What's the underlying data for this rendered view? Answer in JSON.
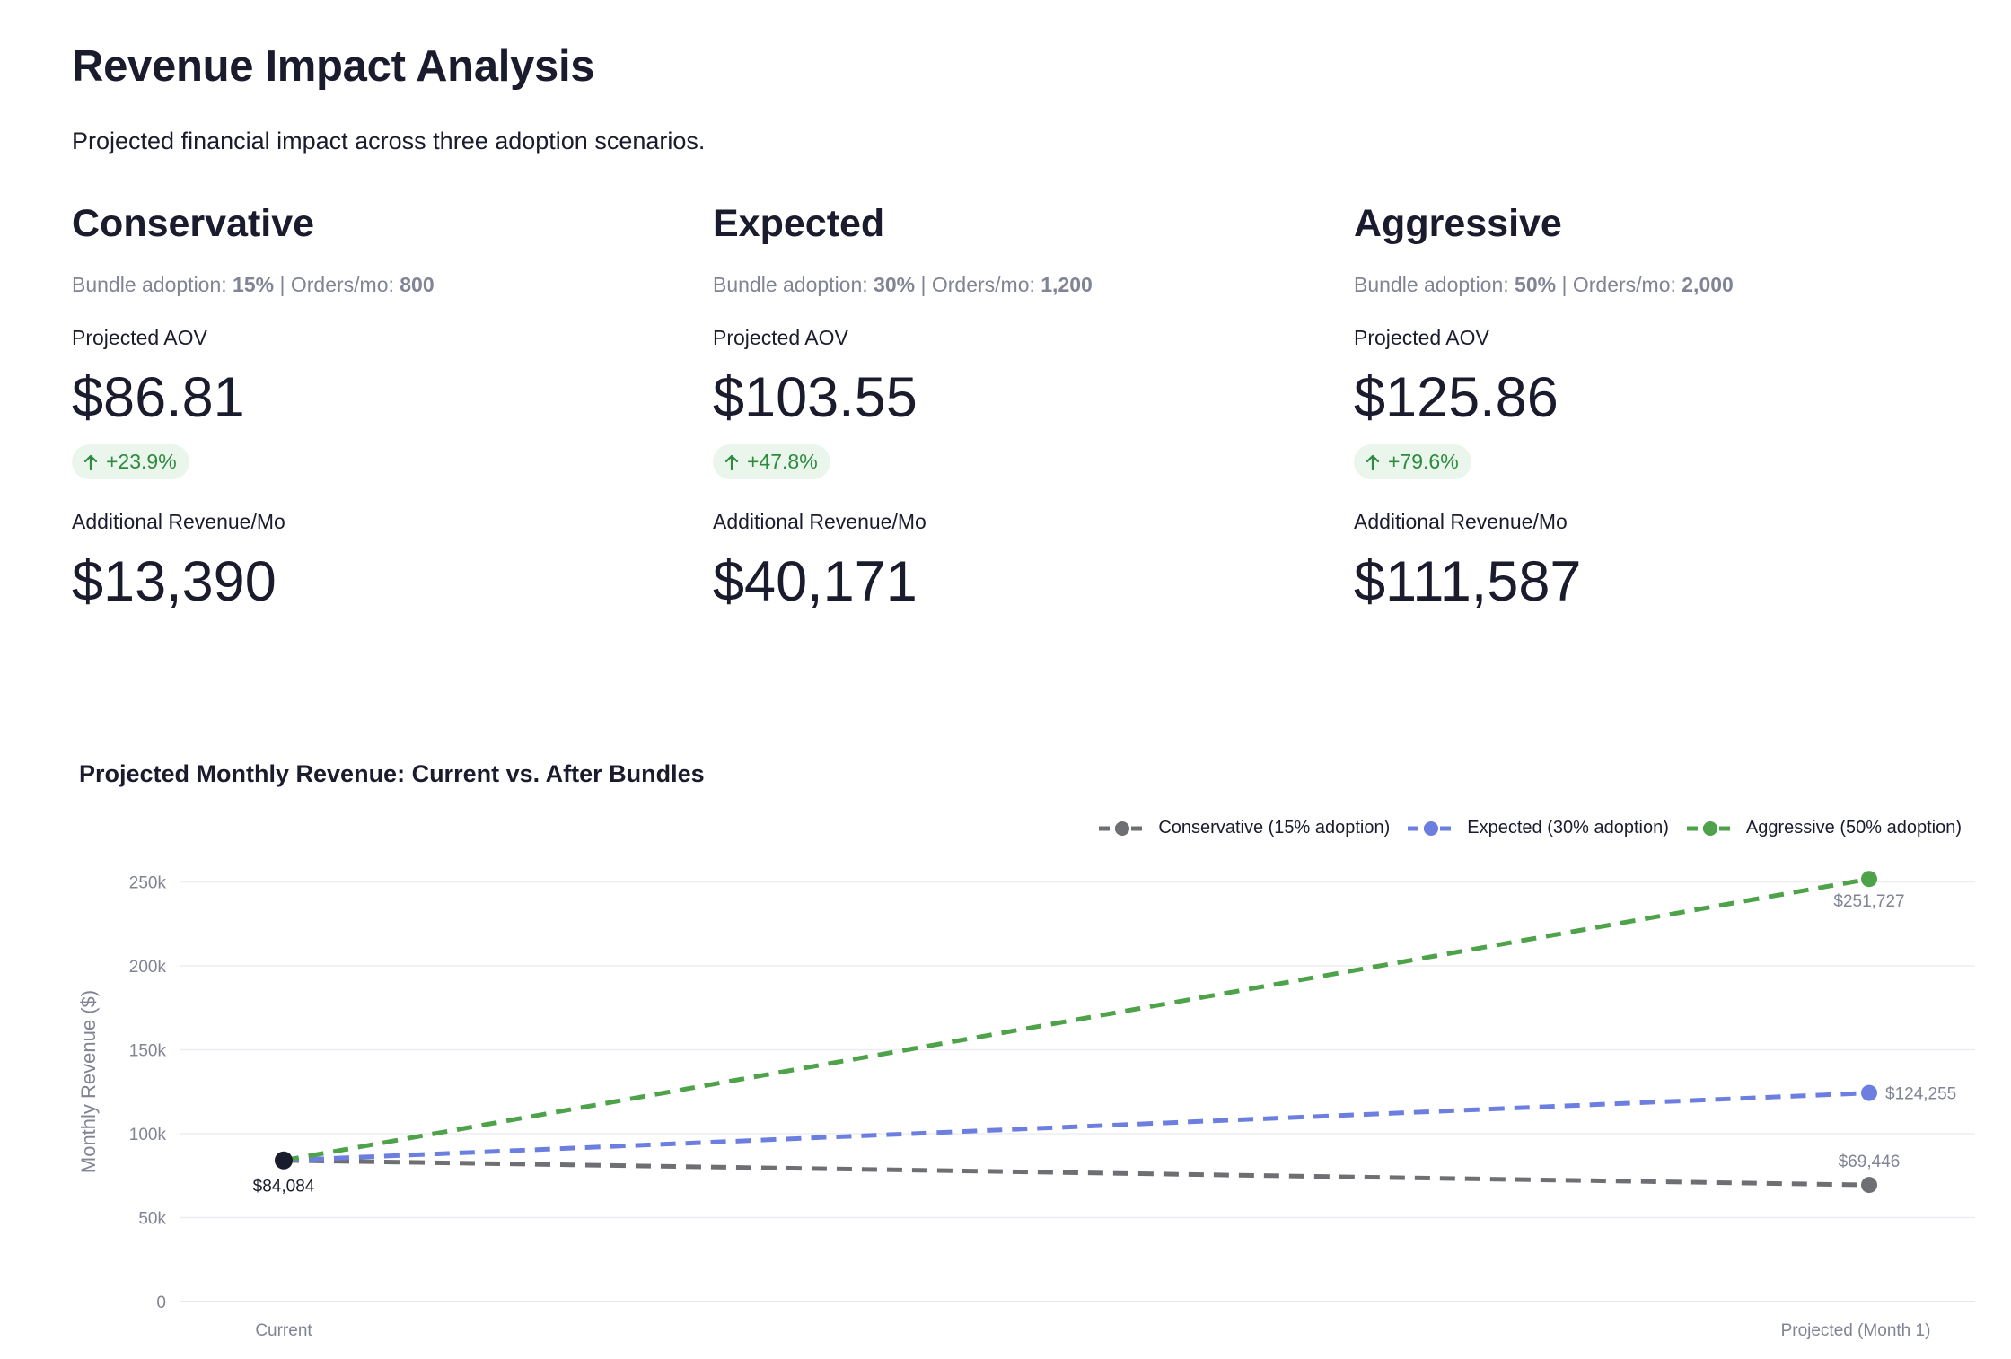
{
  "header": {
    "title": "Revenue Impact Analysis",
    "subtitle": "Projected financial impact across three adoption scenarios."
  },
  "scenarios": [
    {
      "name": "Conservative",
      "adoption_label": "Bundle adoption:",
      "adoption": "15%",
      "orders_label": "| Orders/mo:",
      "orders": "800",
      "aov_label": "Projected AOV",
      "aov": "$86.81",
      "delta": "+23.9%",
      "revenue_label": "Additional Revenue/Mo",
      "revenue": "$13,390"
    },
    {
      "name": "Expected",
      "adoption_label": "Bundle adoption:",
      "adoption": "30%",
      "orders_label": "| Orders/mo:",
      "orders": "1,200",
      "aov_label": "Projected AOV",
      "aov": "$103.55",
      "delta": "+47.8%",
      "revenue_label": "Additional Revenue/Mo",
      "revenue": "$40,171"
    },
    {
      "name": "Aggressive",
      "adoption_label": "Bundle adoption:",
      "adoption": "50%",
      "orders_label": "| Orders/mo:",
      "orders": "2,000",
      "aov_label": "Projected AOV",
      "aov": "$125.86",
      "delta": "+79.6%",
      "revenue_label": "Additional Revenue/Mo",
      "revenue": "$111,587"
    }
  ],
  "colors": {
    "text": "#1a1c2e",
    "muted": "#808495",
    "delta_green": "#2d8a3e",
    "delta_bg": "#eaf6ec",
    "current_point": "#1a1c2e"
  },
  "chart_data": {
    "type": "line",
    "title": "Projected Monthly Revenue: Current vs. After Bundles",
    "xlabel": "",
    "ylabel": "Monthly Revenue ($)",
    "categories": [
      "Current",
      "Projected (Month 1)"
    ],
    "ylim": [
      0,
      262000
    ],
    "yticks": [
      {
        "value": 0,
        "label": "0"
      },
      {
        "value": 50000,
        "label": "50k"
      },
      {
        "value": 100000,
        "label": "100k"
      },
      {
        "value": 150000,
        "label": "150k"
      },
      {
        "value": 200000,
        "label": "200k"
      },
      {
        "value": 250000,
        "label": "250k"
      }
    ],
    "grid": true,
    "legend_position": "top-right",
    "line_style": "dashed",
    "current_label": "$84,084",
    "series": [
      {
        "name": "Conservative (15% adoption)",
        "values": [
          84084,
          69446
        ],
        "labels": [
          "",
          "$69,446"
        ],
        "color": "#6e6f73"
      },
      {
        "name": "Expected (30% adoption)",
        "values": [
          84084,
          124255
        ],
        "labels": [
          "",
          "$124,255"
        ],
        "color": "#6c7fe0"
      },
      {
        "name": "Aggressive (50% adoption)",
        "values": [
          84084,
          251727
        ],
        "labels": [
          "",
          "$251,727"
        ],
        "color": "#4ea24a"
      }
    ]
  }
}
